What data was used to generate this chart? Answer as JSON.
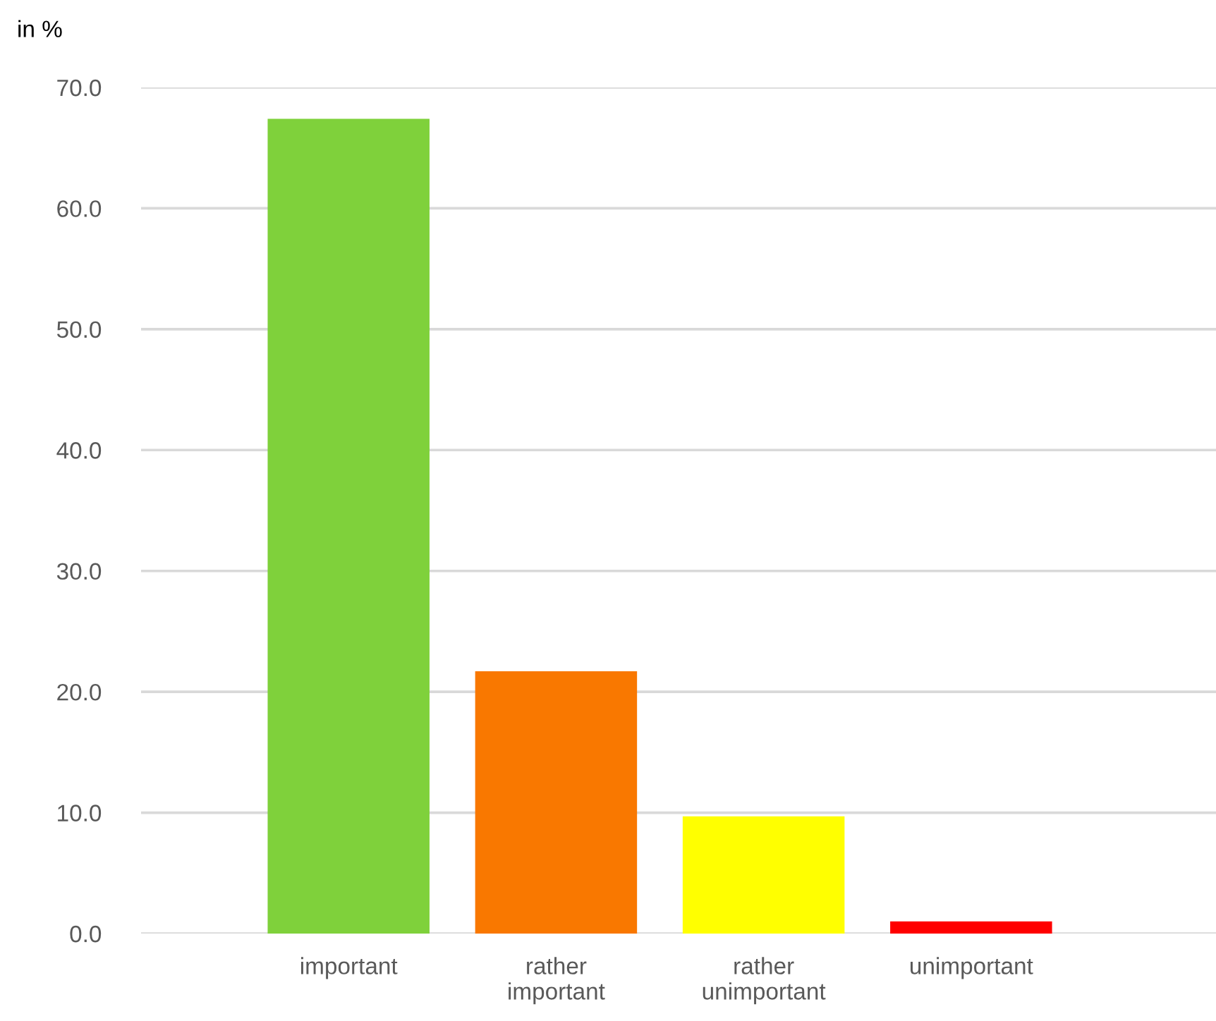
{
  "chart_data": {
    "type": "bar",
    "ylabel": "in %",
    "categories": [
      "important",
      "rather important",
      "rather unimportant",
      "unimportant"
    ],
    "values": [
      67.4,
      21.7,
      9.7,
      1.0
    ],
    "colors": [
      "#7fd13b",
      "#f97800",
      "#ffff00",
      "#ff0000"
    ],
    "ylim": [
      0,
      70
    ],
    "yticks": [
      {
        "value": 0,
        "label": "0.0"
      },
      {
        "value": 10,
        "label": "10.0"
      },
      {
        "value": 20,
        "label": "20.0"
      },
      {
        "value": 30,
        "label": "30.0"
      },
      {
        "value": 40,
        "label": "40.0"
      },
      {
        "value": 50,
        "label": "50.0"
      },
      {
        "value": 60,
        "label": "60.0"
      },
      {
        "value": 70,
        "label": "70.0"
      }
    ],
    "grid": "y",
    "legend": false
  }
}
